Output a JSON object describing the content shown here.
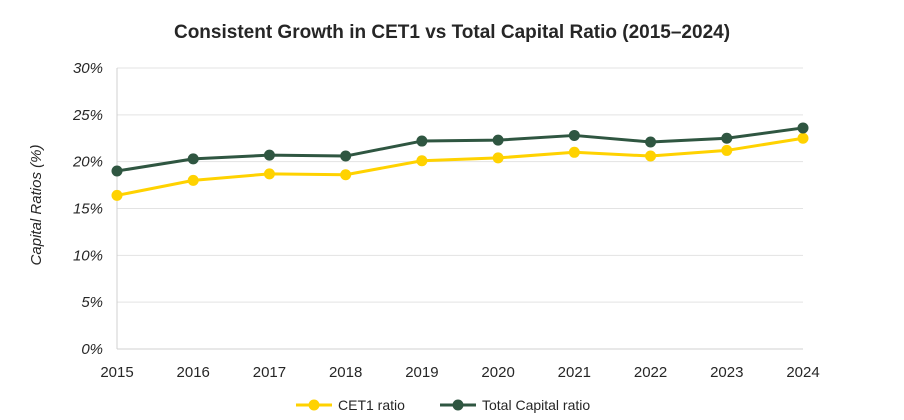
{
  "chart_data": {
    "type": "line",
    "title": "Consistent Growth in CET1 vs Total Capital Ratio (2015–2024)",
    "xlabel": "",
    "ylabel": "Capital Ratios (%)",
    "x": [
      "2015",
      "2016",
      "2017",
      "2018",
      "2019",
      "2020",
      "2021",
      "2022",
      "2023",
      "2024"
    ],
    "ylim": [
      0,
      30
    ],
    "yticks": [
      0,
      5,
      10,
      15,
      20,
      25,
      30
    ],
    "ytick_labels": [
      "0%",
      "5%",
      "10%",
      "15%",
      "20%",
      "25%",
      "30%"
    ],
    "grid": true,
    "legend_position": "bottom",
    "series": [
      {
        "name": "CET1 ratio",
        "color": "#FFD200",
        "values": [
          16.4,
          18.0,
          18.7,
          18.6,
          20.1,
          20.4,
          21.0,
          20.6,
          21.2,
          22.5
        ]
      },
      {
        "name": "Total Capital ratio",
        "color": "#2F5641",
        "values": [
          19.0,
          20.3,
          20.7,
          20.6,
          22.2,
          22.3,
          22.8,
          22.1,
          22.5,
          23.6
        ]
      }
    ]
  }
}
